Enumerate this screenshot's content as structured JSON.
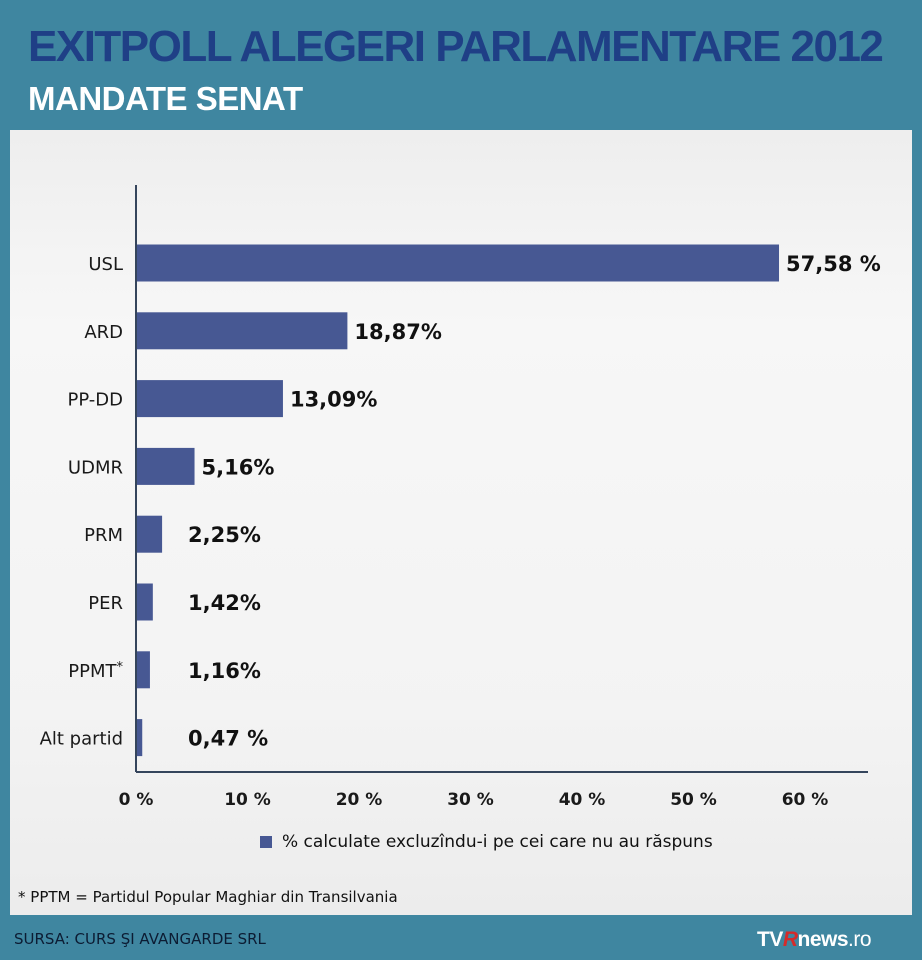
{
  "header": {
    "title": "EXITPOLL ALEGERI PARLAMENTARE 2012",
    "subtitle": "MANDATE SENAT"
  },
  "colors": {
    "bar": "#475893",
    "title": "#1f3f86",
    "background": "#3f86a0",
    "panel": "#f3f3f3"
  },
  "chart_data": {
    "type": "bar",
    "orientation": "horizontal",
    "categories": [
      "USL",
      "ARD",
      "PP-DD",
      "UDMR",
      "PRM",
      "PER",
      "PPMT",
      "Alt partid"
    ],
    "category_markers": [
      "",
      "",
      "",
      "",
      "",
      "",
      "*",
      ""
    ],
    "values": [
      57.58,
      18.87,
      13.09,
      5.16,
      2.25,
      1.42,
      1.16,
      0.47
    ],
    "data_labels": [
      "57,58 %",
      "18,87%",
      "13,09%",
      "5,16%",
      "2,25%",
      "1,42%",
      "1,16%",
      "0,47 %"
    ],
    "xlim": [
      0,
      65
    ],
    "xticks": [
      0,
      10,
      20,
      30,
      40,
      50,
      60
    ],
    "xtick_labels": [
      "0 %",
      "10 %",
      "20 %",
      "30 %",
      "40 %",
      "50 %",
      "60 %"
    ],
    "grid": false,
    "legend_position": "bottom",
    "series": [
      {
        "name": "% calculate excluzîndu-i pe cei care nu au răspuns",
        "values": [
          57.58,
          18.87,
          13.09,
          5.16,
          2.25,
          1.42,
          1.16,
          0.47
        ]
      }
    ]
  },
  "footnote": "* PPTM = Partidul Popular Maghiar din Transilvania",
  "source": "SURSA: CURS ŞI AVANGARDE SRL",
  "logo": {
    "tv": "TV",
    "r": "R",
    "news": "news",
    "ro": ".ro"
  }
}
